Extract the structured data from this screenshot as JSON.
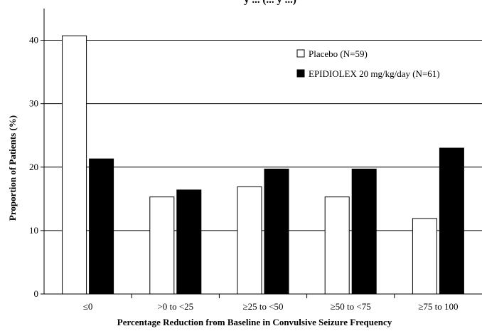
{
  "chart_data": {
    "type": "bar",
    "title": "",
    "title_partial": "y ... (... y ...)",
    "xlabel": "Percentage Reduction from Baseline in Convulsive Seizure Frequency",
    "ylabel": "Proportion of Patients (%)",
    "ylim": [
      0,
      45
    ],
    "yticks": [
      0,
      10,
      20,
      30,
      40
    ],
    "grid": "horizontal",
    "legend_position": "top-right",
    "categories": [
      "≤0",
      ">0 to <25",
      "≥25 to <50",
      "≥50 to <75",
      "≥75 to 100"
    ],
    "series": [
      {
        "name": "Placebo (N=59)",
        "color": "#ffffff",
        "values": [
          40.7,
          15.3,
          16.9,
          15.3,
          11.9
        ]
      },
      {
        "name": "EPIDIOLEX 20 mg/kg/day (N=61)",
        "color": "#000000",
        "values": [
          21.3,
          16.4,
          19.7,
          19.7,
          23.0
        ]
      }
    ]
  }
}
